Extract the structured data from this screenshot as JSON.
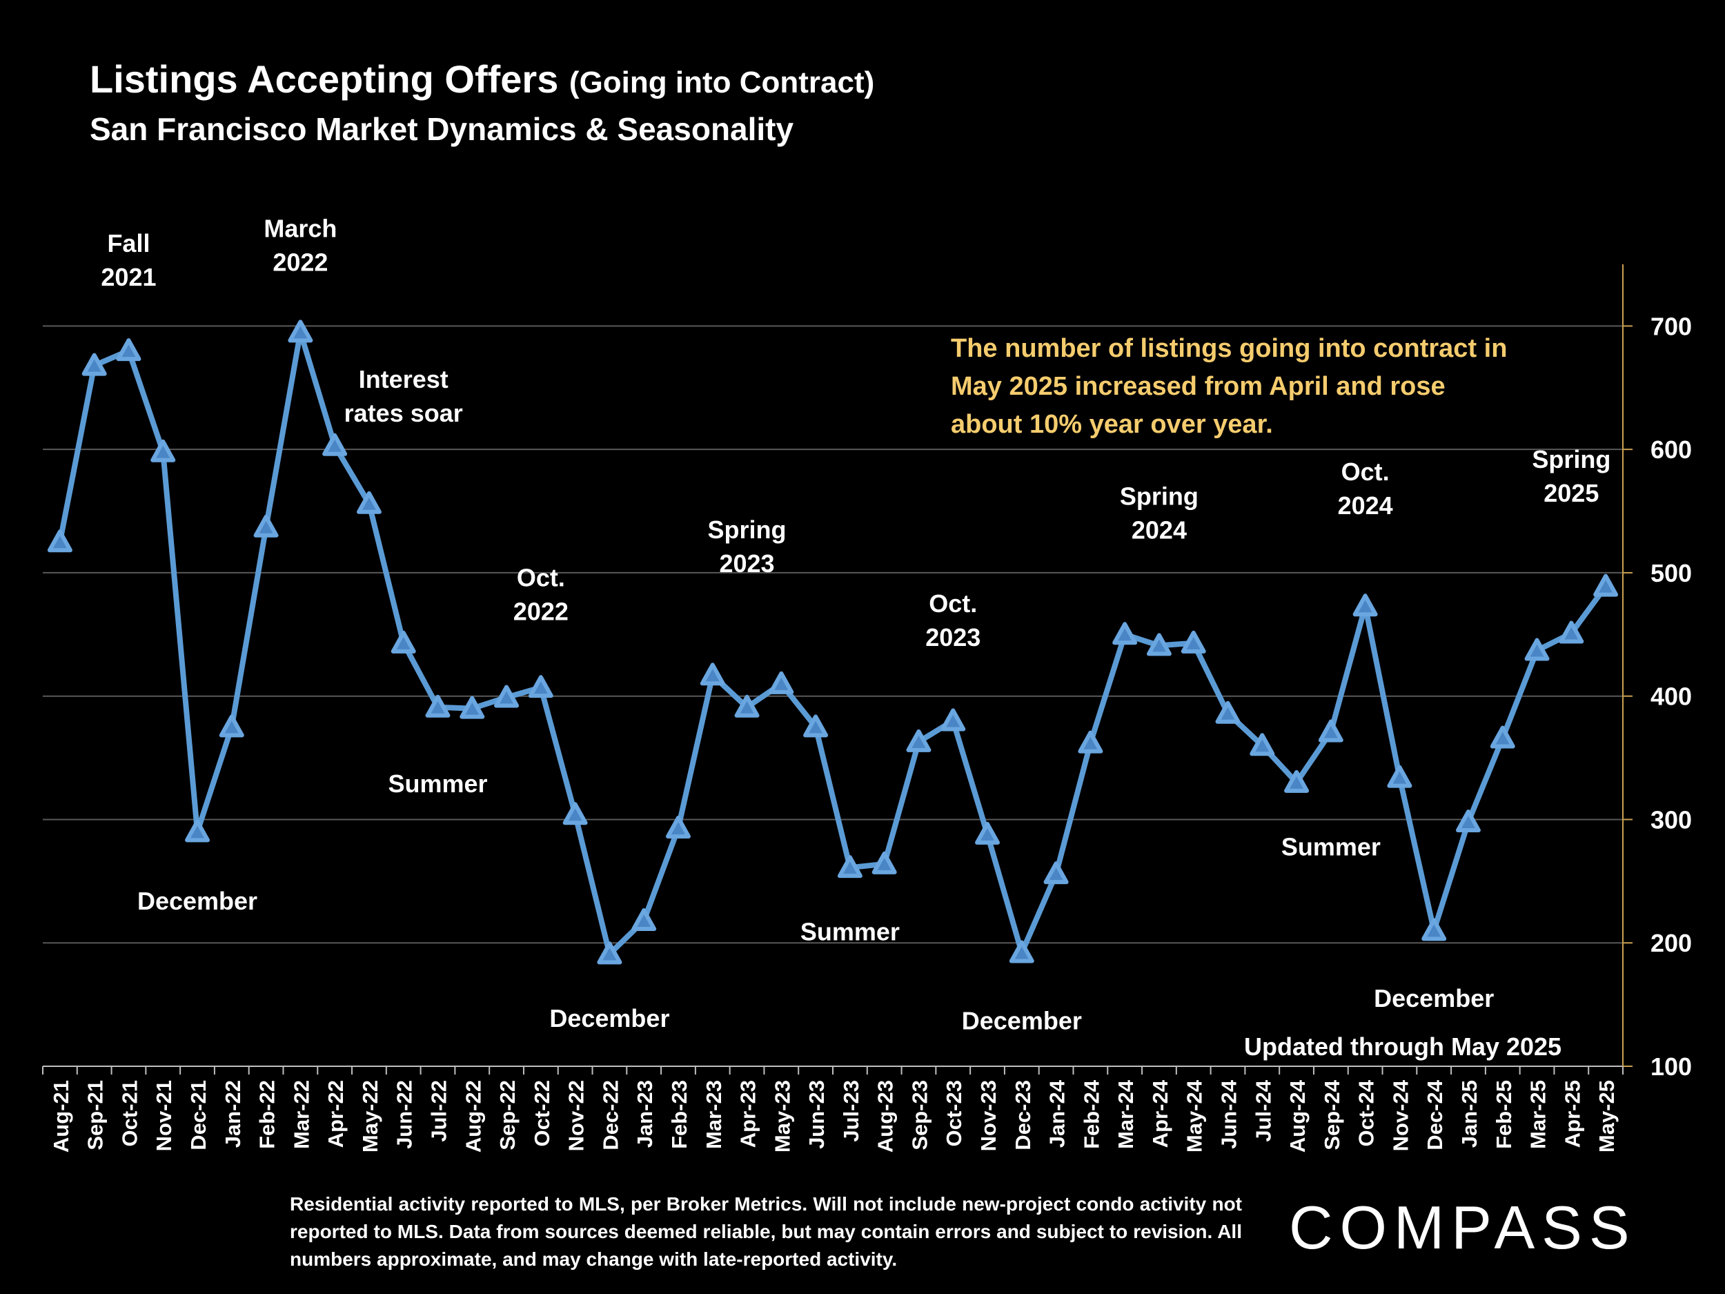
{
  "title": "Listings Accepting Offers",
  "title_suffix": "(Going into Contract)",
  "subtitle": "San Francisco Market Dynamics & Seasonality",
  "note": "The number of listings going into contract in May 2025 increased from April and rose about 10% year over year.",
  "updated": "Updated through May 2025",
  "footer": "Residential activity reported to MLS, per Broker Metrics. Will not include new-project condo activity not reported to MLS. Data from sources deemed reliable, but may contain errors and subject to revision. All numbers approximate, and may change with late-reported activity.",
  "logo": "COMPASS",
  "colors": {
    "line": "#5b9bd5",
    "note": "#f5cc6e",
    "background": "#000000",
    "grid": "#595959",
    "axis": "#c9a050"
  },
  "chart_data": {
    "type": "line",
    "title": "Listings Accepting Offers (Going into Contract)",
    "x_label": "",
    "y_label": "",
    "ylim": [
      100,
      750
    ],
    "y_ticks": [
      100,
      200,
      300,
      400,
      500,
      600,
      700
    ],
    "y_axis_side": "right",
    "categories": [
      "Aug-21",
      "Sep-21",
      "Oct-21",
      "Nov-21",
      "Dec-21",
      "Jan-22",
      "Feb-22",
      "Mar-22",
      "Apr-22",
      "May-22",
      "Jun-22",
      "Jul-22",
      "Aug-22",
      "Sep-22",
      "Oct-22",
      "Nov-22",
      "Dec-22",
      "Jan-23",
      "Feb-23",
      "Mar-23",
      "Apr-23",
      "May-23",
      "Jun-23",
      "Jul-23",
      "Aug-23",
      "Sep-23",
      "Oct-23",
      "Nov-23",
      "Dec-23",
      "Jan-24",
      "Feb-24",
      "Mar-24",
      "Apr-24",
      "May-24",
      "Jun-24",
      "Jul-24",
      "Aug-24",
      "Sep-24",
      "Oct-24",
      "Nov-24",
      "Dec-24",
      "Jan-25",
      "Feb-25",
      "Mar-25",
      "Apr-25",
      "May-25"
    ],
    "series": [
      {
        "name": "Listings Accepting Offers",
        "values": [
          525,
          668,
          680,
          598,
          290,
          375,
          537,
          695,
          603,
          556,
          443,
          391,
          390,
          399,
          407,
          304,
          191,
          218,
          293,
          417,
          391,
          410,
          375,
          261,
          264,
          363,
          380,
          288,
          192,
          256,
          362,
          450,
          441,
          443,
          386,
          360,
          330,
          371,
          473,
          334,
          210,
          298,
          366,
          437,
          451,
          489
        ]
      }
    ],
    "annotations": [
      {
        "text": "Fall\n2021",
        "index": 2,
        "value": 760
      },
      {
        "text": "March\n2022",
        "index": 7,
        "value": 772
      },
      {
        "text": "Interest\nrates soar",
        "index": 10,
        "value": 650
      },
      {
        "text": "Summer",
        "index": 11,
        "value": 322
      },
      {
        "text": "December",
        "index": 4,
        "value": 227
      },
      {
        "text": "Oct.\n2022",
        "index": 14,
        "value": 489
      },
      {
        "text": "December",
        "index": 16,
        "value": 132
      },
      {
        "text": "Spring\n2023",
        "index": 20,
        "value": 528
      },
      {
        "text": "Summer",
        "index": 23,
        "value": 202
      },
      {
        "text": "Oct.\n2023",
        "index": 26,
        "value": 468
      },
      {
        "text": "December",
        "index": 28,
        "value": 130
      },
      {
        "text": "Spring\n2024",
        "index": 32,
        "value": 555
      },
      {
        "text": "Summer",
        "index": 37,
        "value": 271
      },
      {
        "text": "Oct.\n2024",
        "index": 38,
        "value": 575
      },
      {
        "text": "December",
        "index": 40,
        "value": 148
      },
      {
        "text": "Spring\n2025",
        "index": 44,
        "value": 585
      }
    ]
  }
}
